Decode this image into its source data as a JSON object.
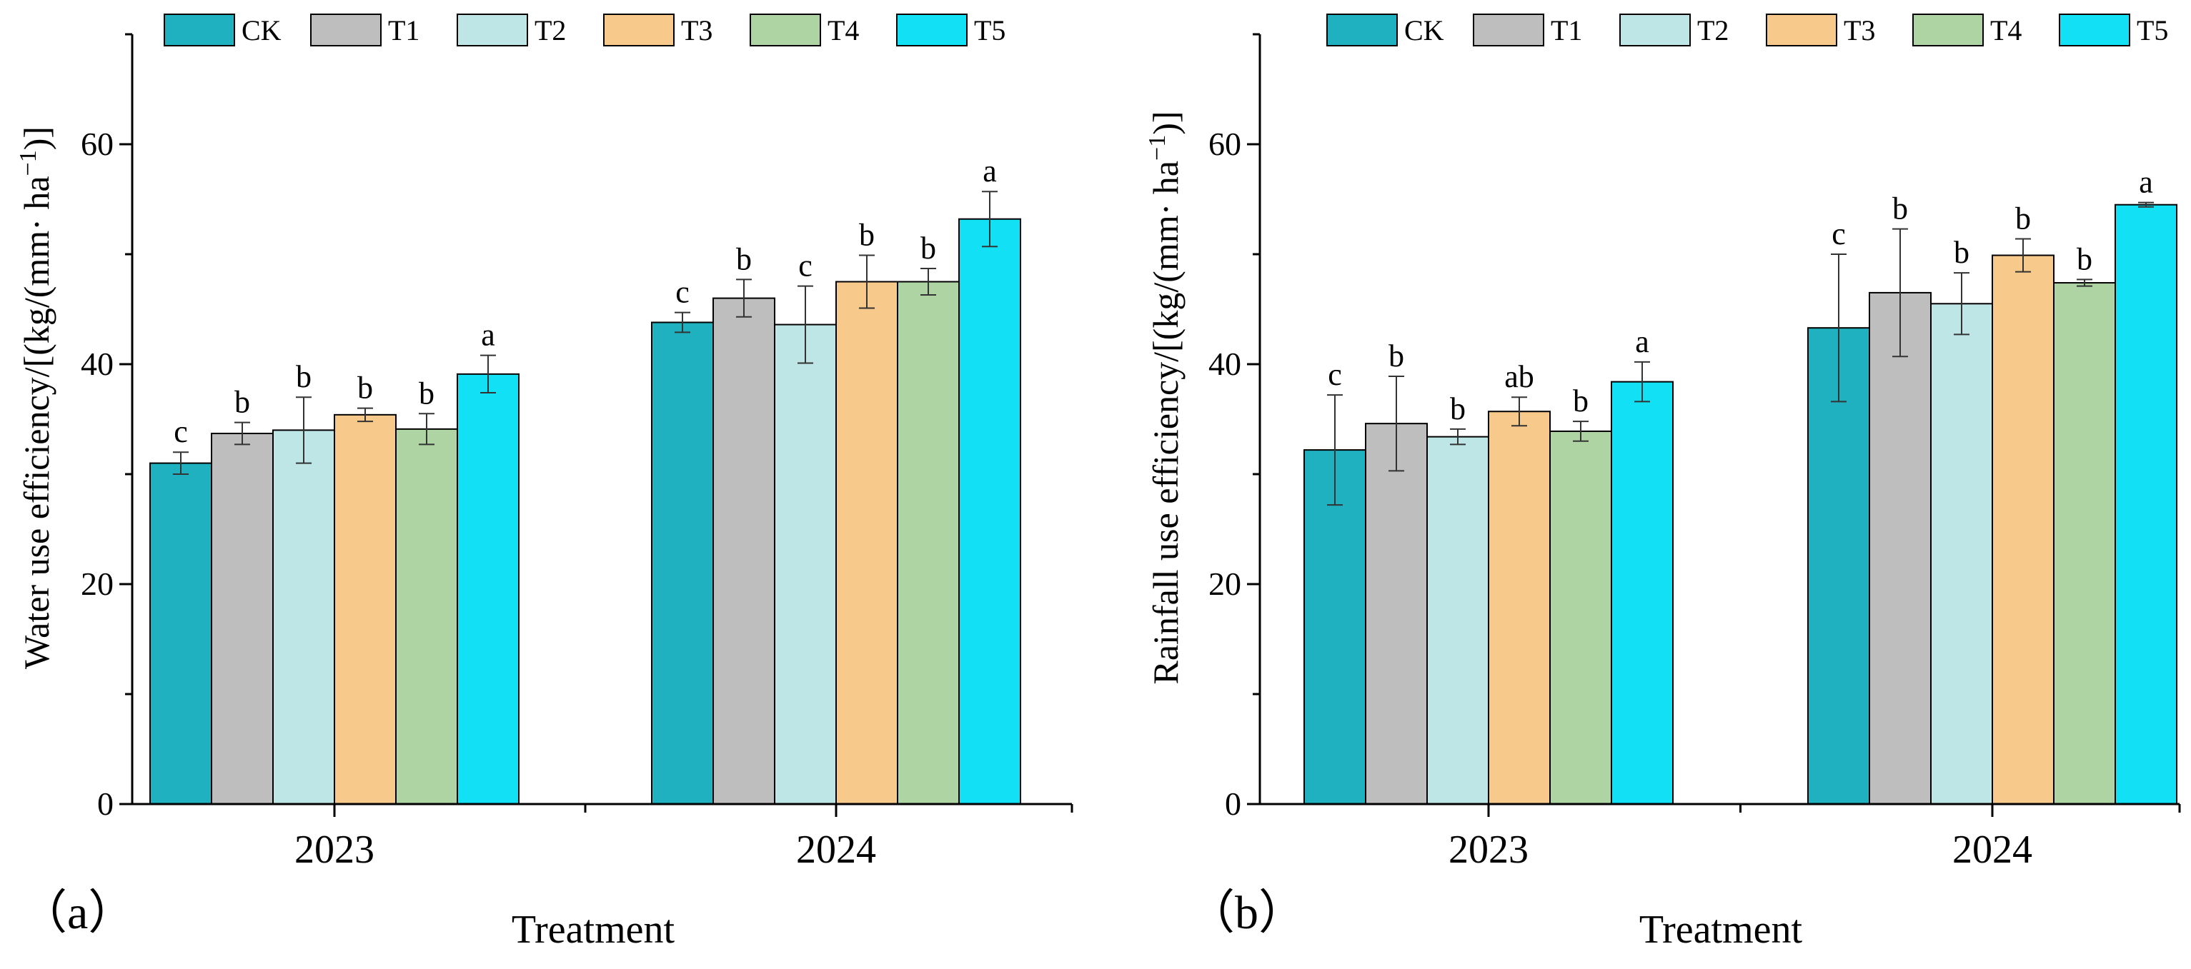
{
  "colors": {
    "CK": "#1FB1BF",
    "T1": "#BEBEBE",
    "T2": "#BEE6E6",
    "T3": "#F7C98A",
    "T4": "#ADD4A2",
    "T5": "#12E0F5",
    "axis": "#000000",
    "errorbar": "#333333"
  },
  "chart_data": [
    {
      "type": "bar",
      "panel_label": "（a）",
      "title": "",
      "xlabel": "Treatment",
      "ylabel": "Water use efficiency/[(kg/(mm· ha",
      "ylabel_sup": "−1",
      "ylabel_tail": ")]",
      "ylim": [
        0,
        70
      ],
      "yticks": [
        0,
        20,
        40,
        60
      ],
      "categories": [
        "2023",
        "2024"
      ],
      "legend_position": "top",
      "series": [
        {
          "name": "CK",
          "values": [
            31.0,
            43.8
          ],
          "errors": [
            1.0,
            0.9
          ],
          "letters": [
            "c",
            "c"
          ]
        },
        {
          "name": "T1",
          "values": [
            33.7,
            46.0
          ],
          "errors": [
            1.0,
            1.7
          ],
          "letters": [
            "b",
            "b"
          ]
        },
        {
          "name": "T2",
          "values": [
            34.0,
            43.6
          ],
          "errors": [
            3.0,
            3.5
          ],
          "letters": [
            "b",
            "c"
          ]
        },
        {
          "name": "T3",
          "values": [
            35.4,
            47.5
          ],
          "errors": [
            0.6,
            2.4
          ],
          "letters": [
            "b",
            "b"
          ]
        },
        {
          "name": "T4",
          "values": [
            34.1,
            47.5
          ],
          "errors": [
            1.4,
            1.2
          ],
          "letters": [
            "b",
            "b"
          ]
        },
        {
          "name": "T5",
          "values": [
            39.1,
            53.2
          ],
          "errors": [
            1.7,
            2.5
          ],
          "letters": [
            "a",
            "a"
          ]
        }
      ]
    },
    {
      "type": "bar",
      "panel_label": "（b）",
      "title": "",
      "xlabel": "Treatment",
      "ylabel": "Rainfall use efficiency/[(kg/(mm· ha",
      "ylabel_sup": "−1",
      "ylabel_tail": ")]",
      "ylim": [
        0,
        70
      ],
      "yticks": [
        0,
        20,
        40,
        60
      ],
      "categories": [
        "2023",
        "2024"
      ],
      "legend_position": "top",
      "series": [
        {
          "name": "CK",
          "values": [
            32.2,
            43.3
          ],
          "errors": [
            5.0,
            6.7
          ],
          "letters": [
            "c",
            "c"
          ]
        },
        {
          "name": "T1",
          "values": [
            34.6,
            46.5
          ],
          "errors": [
            4.3,
            5.8
          ],
          "letters": [
            "b",
            "b"
          ]
        },
        {
          "name": "T2",
          "values": [
            33.4,
            45.5
          ],
          "errors": [
            0.7,
            2.8
          ],
          "letters": [
            "b",
            "b"
          ]
        },
        {
          "name": "T3",
          "values": [
            35.7,
            49.9
          ],
          "errors": [
            1.3,
            1.5
          ],
          "letters": [
            "ab",
            "b"
          ]
        },
        {
          "name": "T4",
          "values": [
            33.9,
            47.4
          ],
          "errors": [
            0.9,
            0.3
          ],
          "letters": [
            "b",
            "b"
          ]
        },
        {
          "name": "T5",
          "values": [
            38.4,
            54.5
          ],
          "errors": [
            1.8,
            0.2
          ],
          "letters": [
            "a",
            "a"
          ]
        }
      ]
    }
  ]
}
